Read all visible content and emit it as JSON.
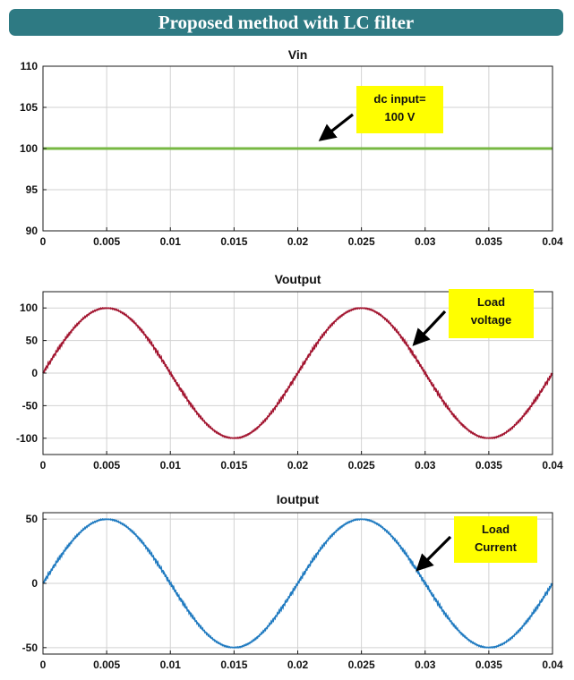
{
  "banner": {
    "title": "Proposed method with LC filter",
    "color": "#2e7a83"
  },
  "chart_data": [
    {
      "type": "line",
      "title": "Vin",
      "xlim": [
        0,
        0.04
      ],
      "ylim": [
        90,
        110
      ],
      "xticks": [
        0,
        0.005,
        0.01,
        0.015,
        0.02,
        0.025,
        0.03,
        0.035,
        0.04
      ],
      "xtick_labels": [
        "0",
        "0.005",
        "0.01",
        "0.015",
        "0.02",
        "0.025",
        "0.03",
        "0.035",
        "0.04"
      ],
      "yticks": [
        90,
        95,
        100,
        105,
        110
      ],
      "ytick_labels": [
        "90",
        "95",
        "100",
        "105",
        "110"
      ],
      "grid": true,
      "series": [
        {
          "color": "#77b843",
          "waveform": "constant",
          "value": 100
        }
      ],
      "annotation": {
        "lines": [
          "dc input=",
          "100 V"
        ],
        "background": "#ffff00",
        "points_to": {
          "x": 0.0222,
          "y": 100
        }
      }
    },
    {
      "type": "line",
      "title": "Voutput",
      "xlim": [
        0,
        0.04
      ],
      "ylim": [
        -125,
        125
      ],
      "xticks": [
        0,
        0.005,
        0.01,
        0.015,
        0.02,
        0.025,
        0.03,
        0.035,
        0.04
      ],
      "xtick_labels": [
        "0",
        "0.005",
        "0.01",
        "0.015",
        "0.02",
        "0.025",
        "0.03",
        "0.035",
        "0.04"
      ],
      "yticks": [
        -100,
        -50,
        0,
        50,
        100
      ],
      "ytick_labels": [
        "-100",
        "-50",
        "0",
        "50",
        "100"
      ],
      "grid": true,
      "series": [
        {
          "color": "#a2142f",
          "waveform": "sine",
          "amplitude": 100,
          "period": 0.02,
          "ripple": 3
        }
      ],
      "annotation": {
        "lines": [
          "Load",
          "voltage"
        ],
        "background": "#ffff00",
        "points_to": {
          "x": 0.0293,
          "y": 50
        }
      }
    },
    {
      "type": "line",
      "title": "Ioutput",
      "xlim": [
        0,
        0.04
      ],
      "ylim": [
        -55,
        55
      ],
      "xticks": [
        0,
        0.005,
        0.01,
        0.015,
        0.02,
        0.025,
        0.03,
        0.035,
        0.04
      ],
      "xtick_labels": [
        "0",
        "0.005",
        "0.01",
        "0.015",
        "0.02",
        "0.025",
        "0.03",
        "0.035",
        "0.04"
      ],
      "yticks": [
        -50,
        0,
        50
      ],
      "ytick_labels": [
        "-50",
        "0",
        "50"
      ],
      "grid": true,
      "series": [
        {
          "color": "#1f7ac0",
          "waveform": "sine",
          "amplitude": 50,
          "period": 0.02,
          "ripple": 1.5
        }
      ],
      "annotation": {
        "lines": [
          "Load",
          "Current"
        ],
        "background": "#ffff00",
        "points_to": {
          "x": 0.0293,
          "y": 25
        }
      }
    }
  ]
}
